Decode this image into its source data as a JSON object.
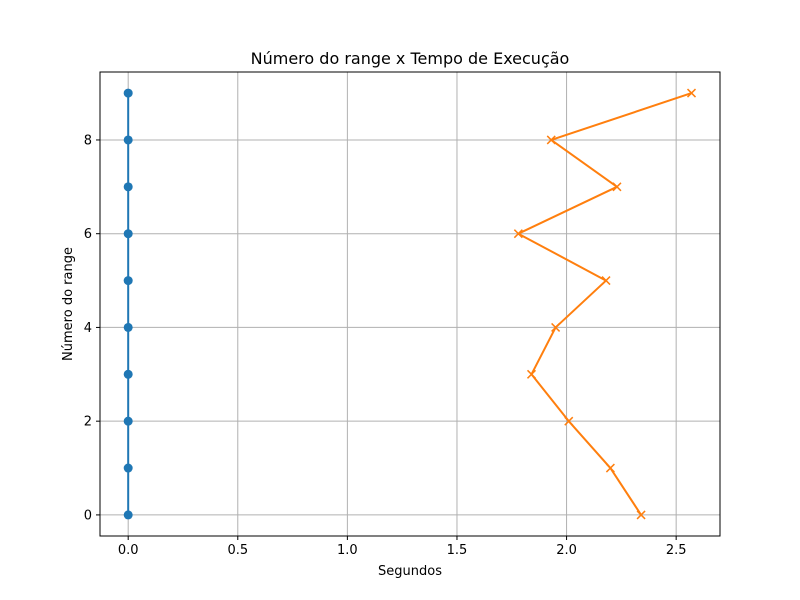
{
  "chart_data": {
    "type": "line",
    "title": "Número do range x Tempo de Execução",
    "xlabel": "Segundos",
    "ylabel": "Número do range",
    "xlim": [
      -0.1286,
      2.7
    ],
    "ylim": [
      -0.45,
      9.45
    ],
    "xticks": [
      0.0,
      0.5,
      1.0,
      1.5,
      2.0,
      2.5
    ],
    "xtick_labels": [
      "0.0",
      "0.5",
      "1.0",
      "1.5",
      "2.0",
      "2.5"
    ],
    "yticks": [
      0,
      2,
      4,
      6,
      8
    ],
    "ytick_labels": [
      "0",
      "2",
      "4",
      "6",
      "8"
    ],
    "grid": true,
    "series": [
      {
        "color": "#1f77b4",
        "marker": "circle",
        "points": [
          {
            "x": 0.0,
            "y": 0
          },
          {
            "x": 0.0,
            "y": 1
          },
          {
            "x": 0.0,
            "y": 2
          },
          {
            "x": 0.0,
            "y": 3
          },
          {
            "x": 0.0,
            "y": 4
          },
          {
            "x": 0.0,
            "y": 5
          },
          {
            "x": 0.0,
            "y": 6
          },
          {
            "x": 0.0,
            "y": 7
          },
          {
            "x": 0.0,
            "y": 8
          },
          {
            "x": 0.0,
            "y": 9
          }
        ]
      },
      {
        "color": "#ff7f0e",
        "marker": "x",
        "points": [
          {
            "x": 2.34,
            "y": 0
          },
          {
            "x": 2.2,
            "y": 1
          },
          {
            "x": 2.01,
            "y": 2
          },
          {
            "x": 1.84,
            "y": 3
          },
          {
            "x": 1.95,
            "y": 4
          },
          {
            "x": 2.18,
            "y": 5
          },
          {
            "x": 1.78,
            "y": 6
          },
          {
            "x": 2.23,
            "y": 7
          },
          {
            "x": 1.93,
            "y": 8
          },
          {
            "x": 2.57,
            "y": 9
          }
        ]
      }
    ]
  }
}
